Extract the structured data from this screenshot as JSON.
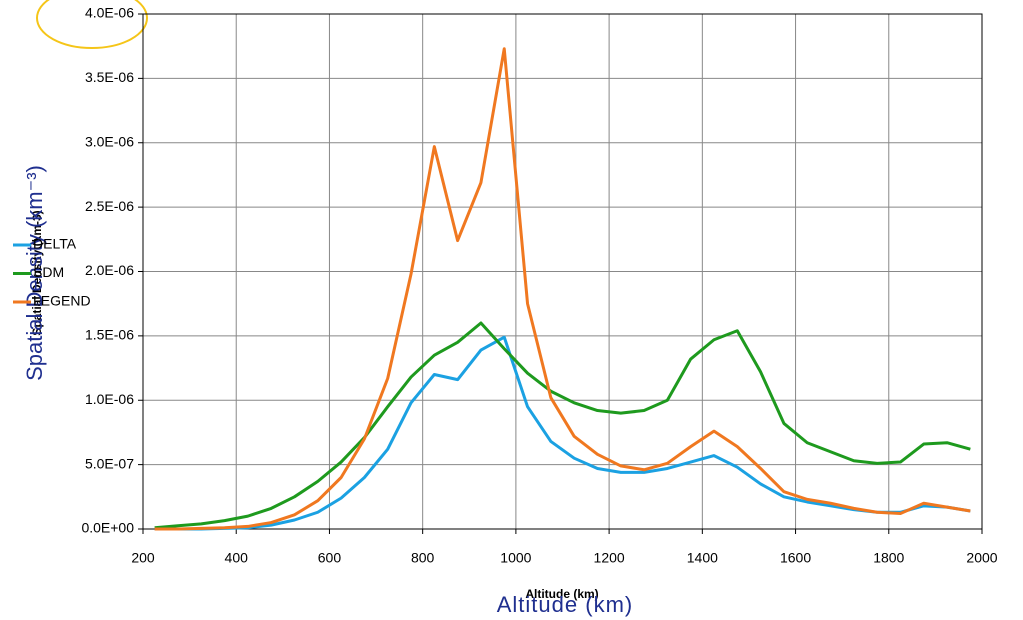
{
  "chart_data": {
    "type": "line",
    "x_label": "Altitude (km)",
    "x_label_2": "Altitude (km)",
    "y_label": "Spatial Density (km⁻³)",
    "y_label_2": "Spatial Density (km-3)",
    "x": [
      225,
      275,
      325,
      375,
      425,
      475,
      525,
      575,
      625,
      675,
      725,
      775,
      825,
      875,
      925,
      975,
      1025,
      1075,
      1125,
      1175,
      1225,
      1275,
      1325,
      1375,
      1425,
      1475,
      1525,
      1575,
      1625,
      1675,
      1725,
      1775,
      1825,
      1875,
      1925,
      1975
    ],
    "series": [
      {
        "name": "DELTA",
        "color": "#1ba1e2",
        "values": [
          0,
          0,
          0,
          5e-09,
          1e-08,
          3e-08,
          7e-08,
          1.3e-07,
          2.4e-07,
          4e-07,
          6.2e-07,
          9.8e-07,
          1.2e-06,
          1.16e-06,
          1.39e-06,
          1.49e-06,
          9.5e-07,
          6.8e-07,
          5.5e-07,
          4.7e-07,
          4.4e-07,
          4.4e-07,
          4.7e-07,
          5.2e-07,
          5.7e-07,
          4.8e-07,
          3.5e-07,
          2.5e-07,
          2.1e-07,
          1.8e-07,
          1.5e-07,
          1.3e-07,
          1.3e-07,
          1.8e-07,
          1.7e-07,
          1.4e-07
        ]
      },
      {
        "name": "SDM",
        "color": "#1e9a1e",
        "values": [
          1e-08,
          2.5e-08,
          4e-08,
          6.5e-08,
          1e-07,
          1.6e-07,
          2.5e-07,
          3.7e-07,
          5.2e-07,
          7.1e-07,
          9.5e-07,
          1.18e-06,
          1.35e-06,
          1.45e-06,
          1.6e-06,
          1.4e-06,
          1.21e-06,
          1.07e-06,
          9.8e-07,
          9.2e-07,
          9e-07,
          9.2e-07,
          1e-06,
          1.32e-06,
          1.47e-06,
          1.54e-06,
          1.22e-06,
          8.2e-07,
          6.7e-07,
          6e-07,
          5.3e-07,
          5.1e-07,
          5.2e-07,
          6.6e-07,
          6.7e-07,
          6.2e-07
        ]
      },
      {
        "name": "LEGEND",
        "color": "#f07820",
        "values": [
          0,
          0,
          5e-09,
          1e-08,
          2e-08,
          5e-08,
          1.1e-07,
          2.2e-07,
          4e-07,
          7e-07,
          1.17e-06,
          1.98e-06,
          2.97e-06,
          2.24e-06,
          2.69e-06,
          3.73e-06,
          1.75e-06,
          1.02e-06,
          7.2e-07,
          5.8e-07,
          4.9e-07,
          4.6e-07,
          5.1e-07,
          6.4e-07,
          7.6e-07,
          6.4e-07,
          4.7e-07,
          2.9e-07,
          2.3e-07,
          2e-07,
          1.6e-07,
          1.3e-07,
          1.2e-07,
          2e-07,
          1.7e-07,
          1.4e-07
        ]
      }
    ],
    "xlim": [
      200,
      2000
    ],
    "xticks": [
      200,
      400,
      600,
      800,
      1000,
      1200,
      1400,
      1600,
      1800,
      2000
    ],
    "ylim": [
      0,
      4e-06
    ],
    "yticks": [
      {
        "value": 0,
        "label": "0.0E+00"
      },
      {
        "value": 5e-07,
        "label": "5.0E-07"
      },
      {
        "value": 1e-06,
        "label": "1.0E-06"
      },
      {
        "value": 1.5e-06,
        "label": "1.5E-06"
      },
      {
        "value": 2e-06,
        "label": "2.0E-06"
      },
      {
        "value": 2.5e-06,
        "label": "2.5E-06"
      },
      {
        "value": 3e-06,
        "label": "3.0E-06"
      },
      {
        "value": 3.5e-06,
        "label": "3.5E-06"
      },
      {
        "value": 4e-06,
        "label": "4.0E-06"
      }
    ],
    "grid": true,
    "legend": "left"
  }
}
